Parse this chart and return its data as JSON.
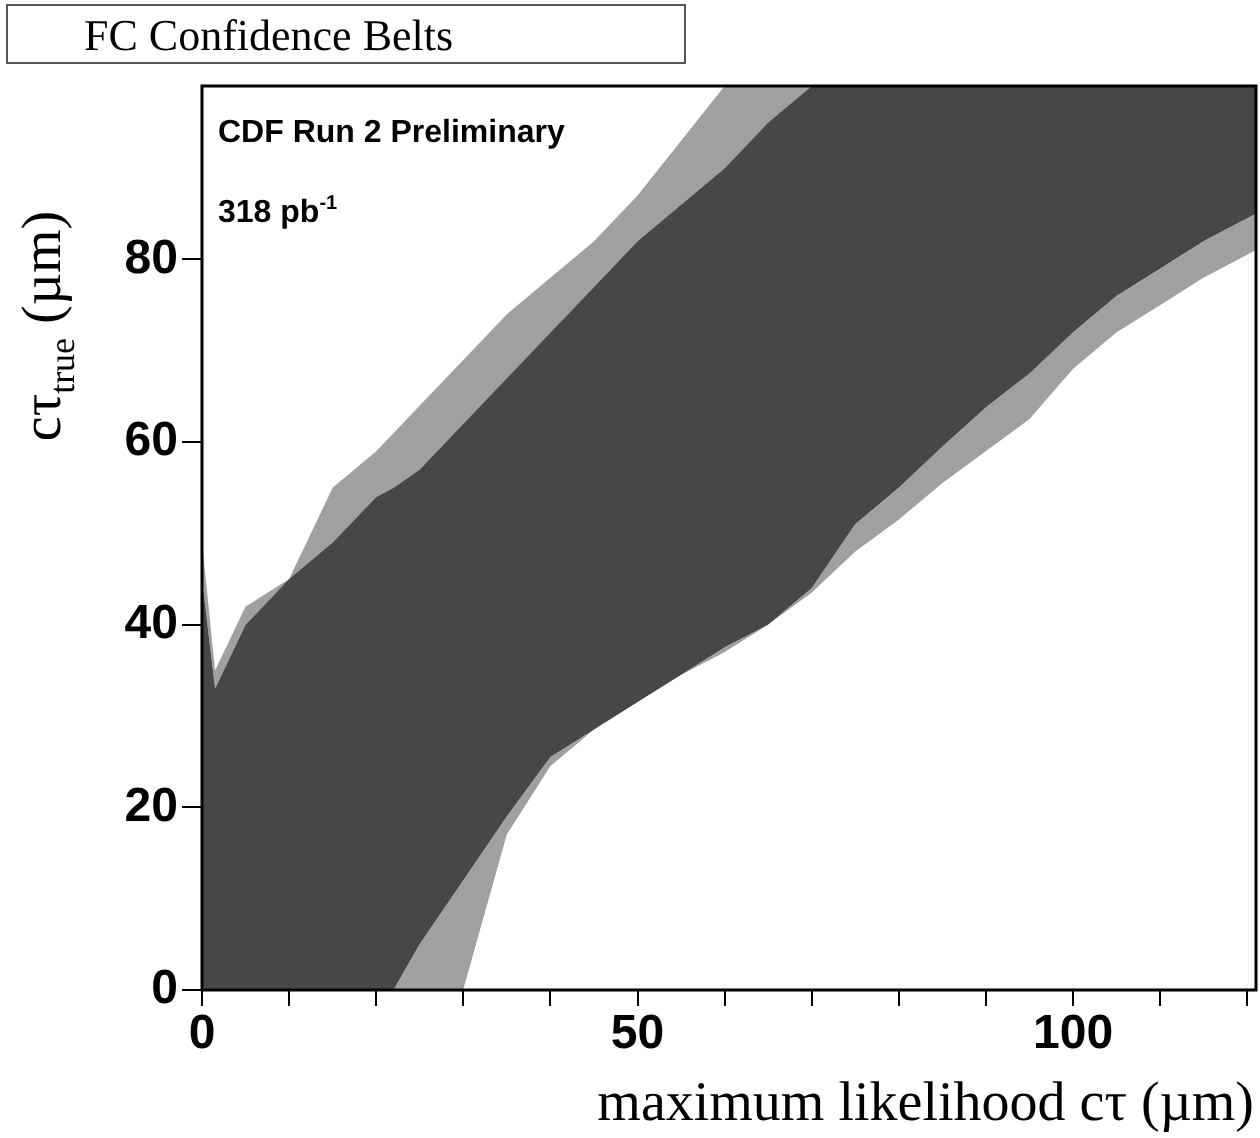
{
  "chart_data": {
    "type": "area",
    "stacked": true,
    "title": "FC Confidence Belts",
    "xlabel": "maximum likelihood cτ (µm)",
    "ylabel": "cτ$_{true}$ (µm)",
    "annotations": [
      "CDF Run 2 Preliminary",
      "318 pb$^{-1}$"
    ],
    "x": [
      0,
      1.5,
      5,
      10,
      15,
      20,
      22,
      25,
      30,
      35,
      40,
      45,
      50,
      55,
      60,
      65,
      70,
      75,
      80,
      85,
      90,
      95,
      100,
      105,
      110,
      115,
      121
    ],
    "series": [
      {
        "color": "#ffffff",
        "values": [
          0,
          0,
          0,
          0,
          0,
          0,
          0,
          0,
          0,
          17,
          24.5,
          28.5,
          31.5,
          34.5,
          37,
          40,
          43.5,
          48,
          51.5,
          55.5,
          59,
          62.5,
          68,
          72,
          75,
          78,
          81
        ]
      },
      {
        "color": "#a0a0a0",
        "values": [
          0,
          0,
          0,
          0,
          0,
          0,
          0,
          5,
          12,
          2,
          1,
          0,
          0,
          0,
          0.5,
          0,
          0.5,
          3,
          3.5,
          4,
          4.8,
          5,
          4,
          4,
          4,
          4,
          4
        ]
      },
      {
        "color": "#474747",
        "values": [
          45,
          33,
          40,
          45,
          49,
          54,
          55,
          52,
          50,
          48,
          46.5,
          48.5,
          50.5,
          51.5,
          52.5,
          55,
          55,
          48,
          44,
          39.5,
          35.2,
          31.5,
          27,
          23,
          20,
          17,
          14
        ]
      },
      {
        "color": "#a0a0a0",
        "values": [
          4,
          2,
          2,
          0,
          6,
          5,
          6,
          7,
          7,
          7,
          6,
          5,
          5,
          7,
          9,
          4,
          0,
          0,
          0,
          0,
          0,
          0,
          0,
          0,
          0,
          0,
          0
        ]
      }
    ],
    "xlim": [
      0,
      121
    ],
    "ylim": [
      0,
      99
    ],
    "xticks": [
      0,
      {
        "value": 10,
        "label": null
      },
      {
        "value": 20,
        "label": null
      },
      {
        "value": 30,
        "label": null
      },
      {
        "value": 40,
        "label": null
      },
      50,
      {
        "value": 60,
        "label": null
      },
      {
        "value": 70,
        "label": null
      },
      {
        "value": 80,
        "label": null
      },
      {
        "value": 90,
        "label": null
      },
      100,
      {
        "value": 110,
        "label": null
      },
      {
        "value": 120,
        "label": null
      }
    ],
    "yticks": [
      0,
      20,
      40,
      60,
      80
    ],
    "grid": false,
    "legend": false
  }
}
